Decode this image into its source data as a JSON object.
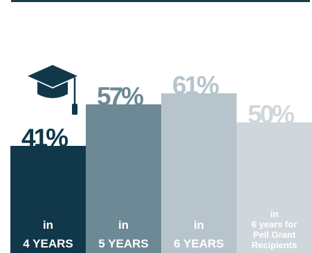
{
  "colors": {
    "rule": "#1a3d4c",
    "bars": [
      "#10384a",
      "#6c8995",
      "#b7c4cb",
      "#d0d7dc"
    ],
    "pct_text": [
      "#10384a",
      "#6c8995",
      "#b7c4cb",
      "#d0d7dc"
    ],
    "label_text": "#ffffff",
    "cap": "#10384a"
  },
  "chart_data": {
    "type": "bar",
    "categories": [
      "4 YEARS",
      "5 YEARS",
      "6 YEARS",
      "6 years for Pell Grant Recipients"
    ],
    "values": [
      41,
      57,
      61,
      50
    ],
    "value_labels": [
      "41%",
      "57%",
      "61%",
      "50%"
    ],
    "bar_labels": [
      {
        "line1": "in",
        "line2": "4 YEARS"
      },
      {
        "line1": "in",
        "line2": "5 YEARS"
      },
      {
        "line1": "in",
        "line2": "6 YEARS"
      },
      {
        "lines": [
          "in",
          "6 years for",
          "Pell Grant",
          "Recipients"
        ]
      }
    ],
    "icons": [
      "graduation-cap-icon"
    ],
    "ylim": [
      0,
      100
    ]
  }
}
